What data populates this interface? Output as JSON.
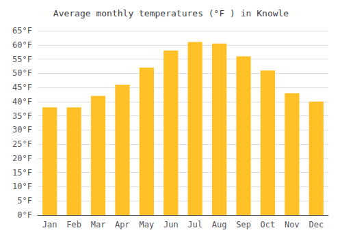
{
  "chart_data": {
    "type": "bar",
    "title": "Average monthly temperatures (°F ) in Knowle",
    "categories": [
      "Jan",
      "Feb",
      "Mar",
      "Apr",
      "May",
      "Jun",
      "Jul",
      "Aug",
      "Sep",
      "Oct",
      "Nov",
      "Dec"
    ],
    "values": [
      38,
      38,
      42,
      46,
      52,
      58,
      61,
      60.5,
      56,
      51,
      43,
      40
    ],
    "color": "#FFC125",
    "ylim": [
      0,
      65
    ],
    "yticks": [
      {
        "value": 0,
        "label": "0°F"
      },
      {
        "value": 5,
        "label": "5°F"
      },
      {
        "value": 10,
        "label": "10°F"
      },
      {
        "value": 15,
        "label": "15°F"
      },
      {
        "value": 20,
        "label": "20°F"
      },
      {
        "value": 25,
        "label": "25°F"
      },
      {
        "value": 30,
        "label": "30°F"
      },
      {
        "value": 35,
        "label": "35°F"
      },
      {
        "value": 40,
        "label": "40°F"
      },
      {
        "value": 45,
        "label": "45°F"
      },
      {
        "value": 50,
        "label": "50°F"
      },
      {
        "value": 55,
        "label": "55°F"
      },
      {
        "value": 60,
        "label": "60°F"
      },
      {
        "value": 65,
        "label": "65°F"
      }
    ],
    "grid": true
  }
}
